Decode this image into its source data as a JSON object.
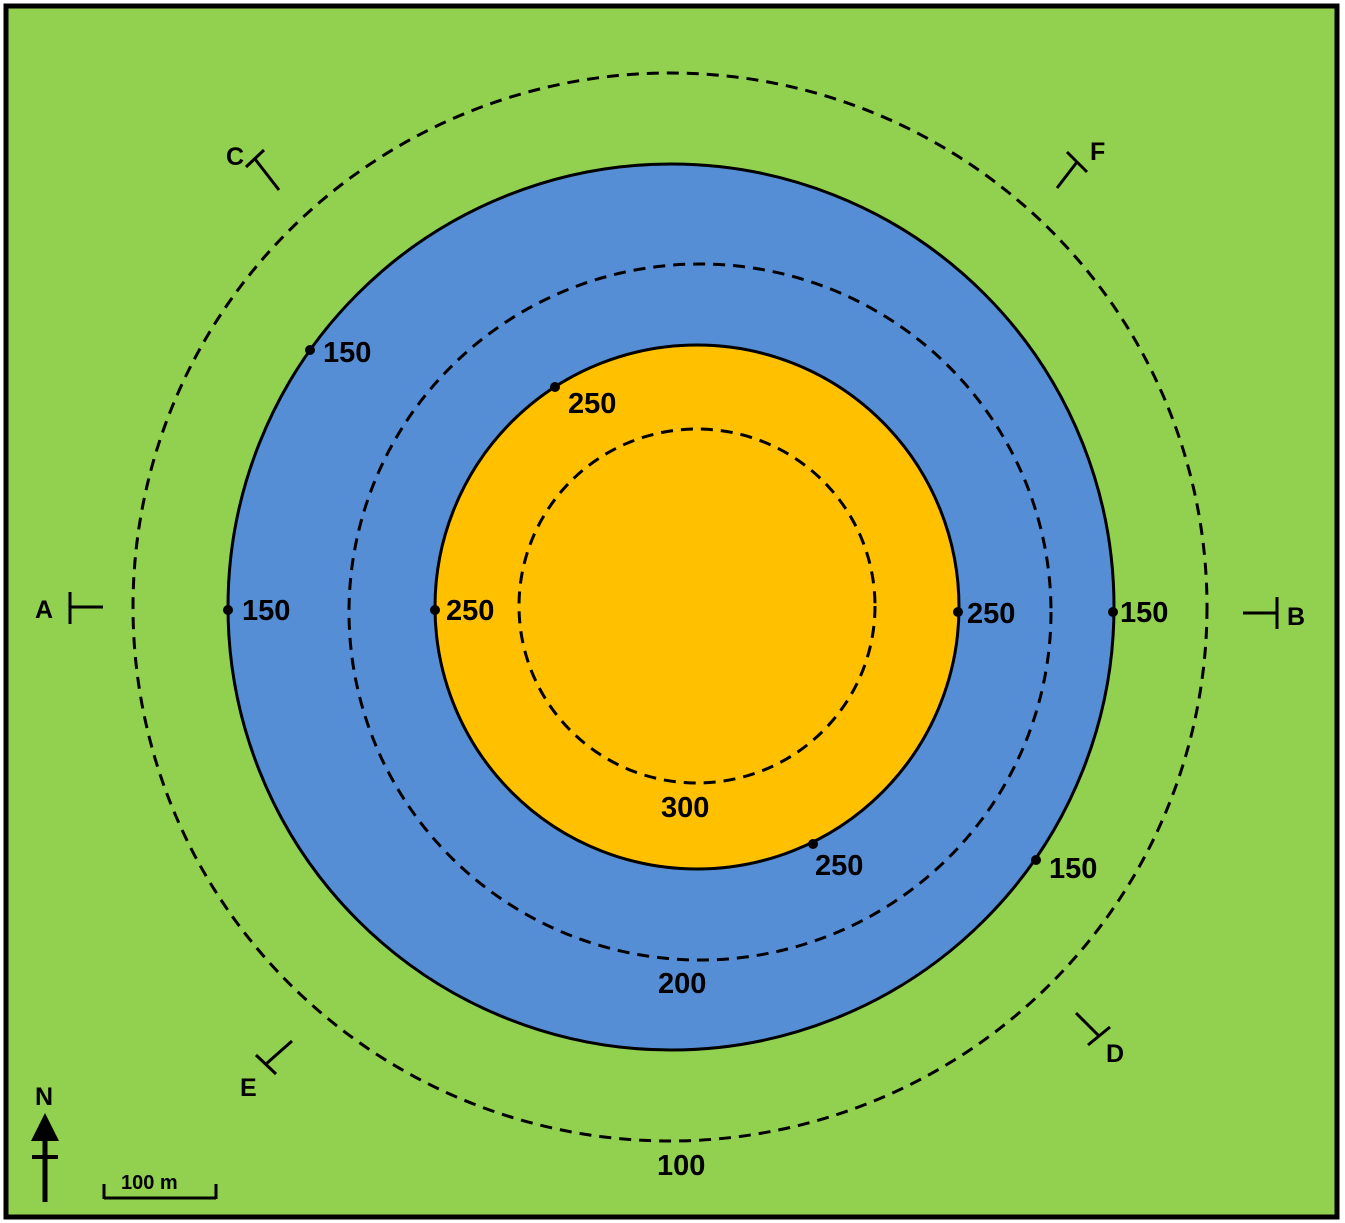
{
  "colors": {
    "lowland": "#92d050",
    "mid_zone": "#558ed5",
    "summit_zone": "#ffc000",
    "lines": "#000000"
  },
  "contours": {
    "dashed_100": "100",
    "dashed_200": "200",
    "dashed_300": "300",
    "boundary_150_labels": [
      "150",
      "150",
      "150",
      "150"
    ],
    "boundary_250_labels": [
      "250",
      "250",
      "250",
      "250"
    ]
  },
  "cross_sections": {
    "a": "A",
    "b": "B",
    "c": "C",
    "d": "D",
    "e": "E",
    "f": "F"
  },
  "north_arrow": {
    "label": "N"
  },
  "scale_bar": {
    "label": "100 m"
  }
}
